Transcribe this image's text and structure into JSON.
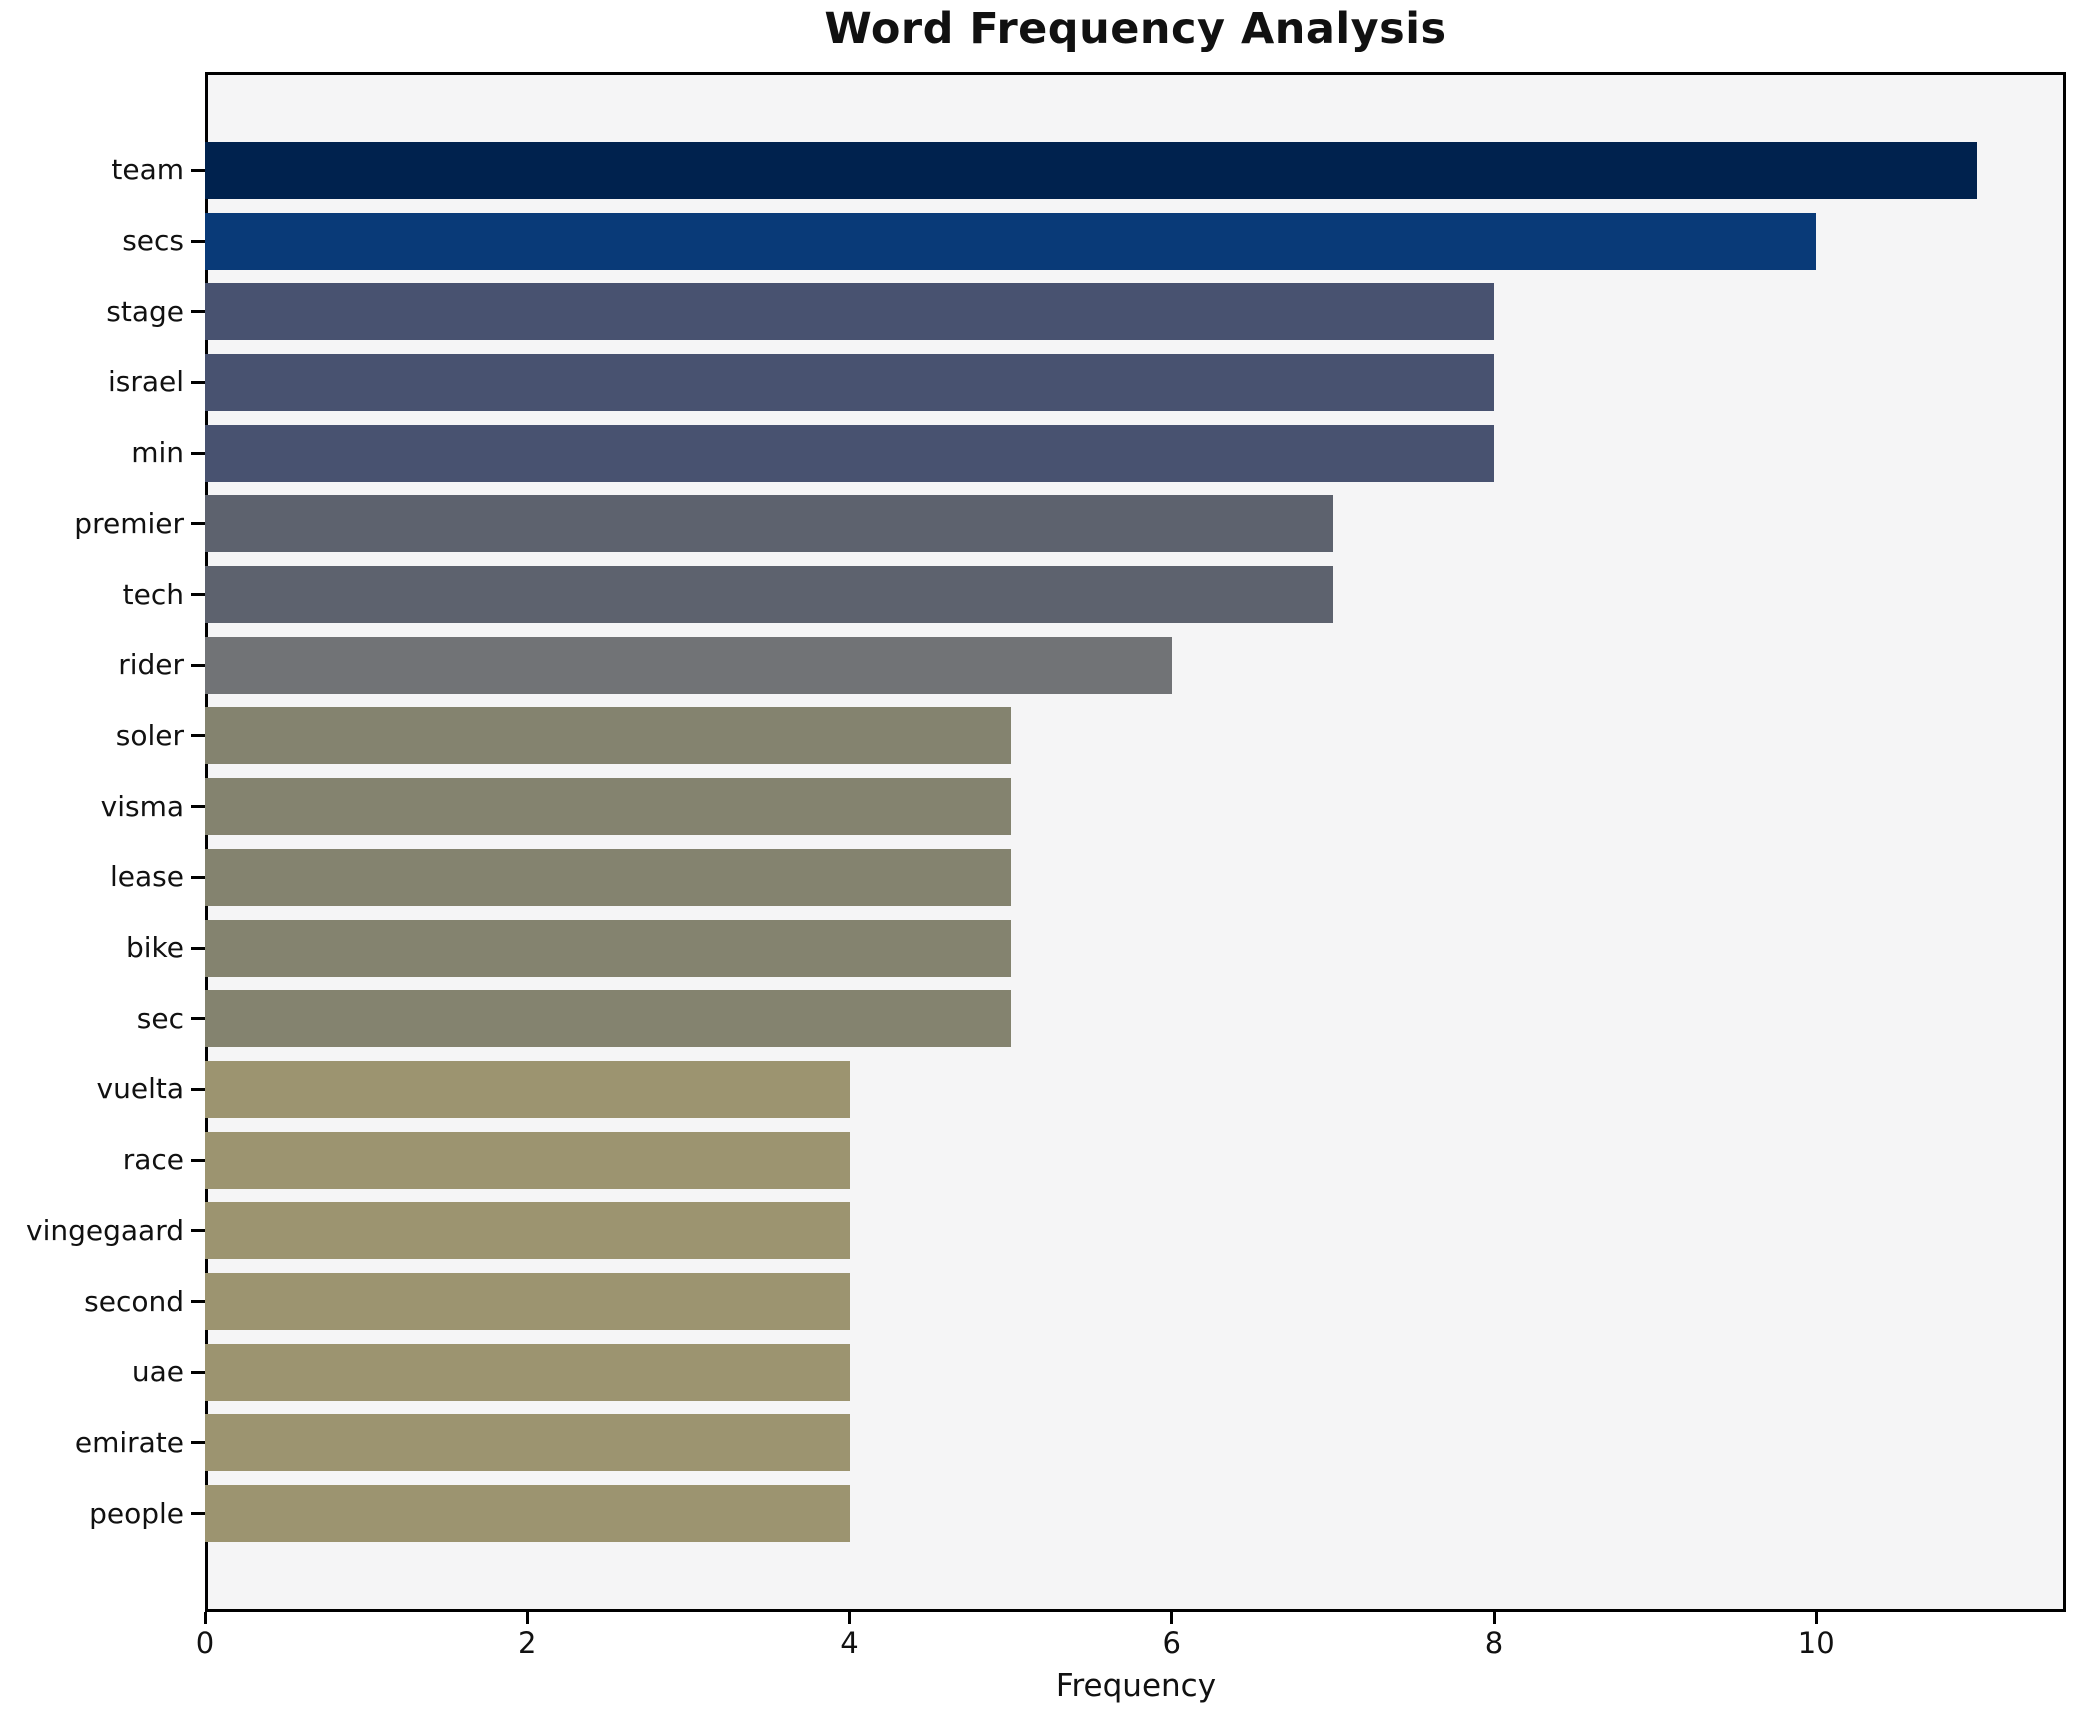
{
  "chart_data": {
    "type": "bar",
    "orientation": "horizontal",
    "title": "Word Frequency Analysis",
    "xlabel": "Frequency",
    "ylabel": "",
    "categories": [
      "team",
      "secs",
      "stage",
      "israel",
      "min",
      "premier",
      "tech",
      "rider",
      "soler",
      "visma",
      "lease",
      "bike",
      "sec",
      "vuelta",
      "race",
      "vingegaard",
      "second",
      "uae",
      "emirate",
      "people"
    ],
    "values": [
      11,
      10,
      8,
      8,
      8,
      7,
      7,
      6,
      5,
      5,
      5,
      5,
      5,
      4,
      4,
      4,
      4,
      4,
      4,
      4
    ],
    "bar_colors": [
      "#00224e",
      "#093a78",
      "#485270",
      "#485270",
      "#485270",
      "#5d626e",
      "#5d626e",
      "#717376",
      "#84836f",
      "#84836f",
      "#84836f",
      "#84836f",
      "#84836f",
      "#9c9470",
      "#9c9470",
      "#9c9470",
      "#9c9470",
      "#9c9470",
      "#9c9470",
      "#9c9470"
    ],
    "xticks": [
      "0",
      "2",
      "4",
      "6",
      "8",
      "10"
    ],
    "xtick_values": [
      0,
      2,
      4,
      6,
      8,
      10
    ],
    "xlim": [
      0,
      11.55
    ],
    "grid": false,
    "legend": null,
    "plot_background": "#f5f5f6",
    "page_background": "#ffffff",
    "axis_color": "#000000",
    "text_color": "#111111"
  }
}
